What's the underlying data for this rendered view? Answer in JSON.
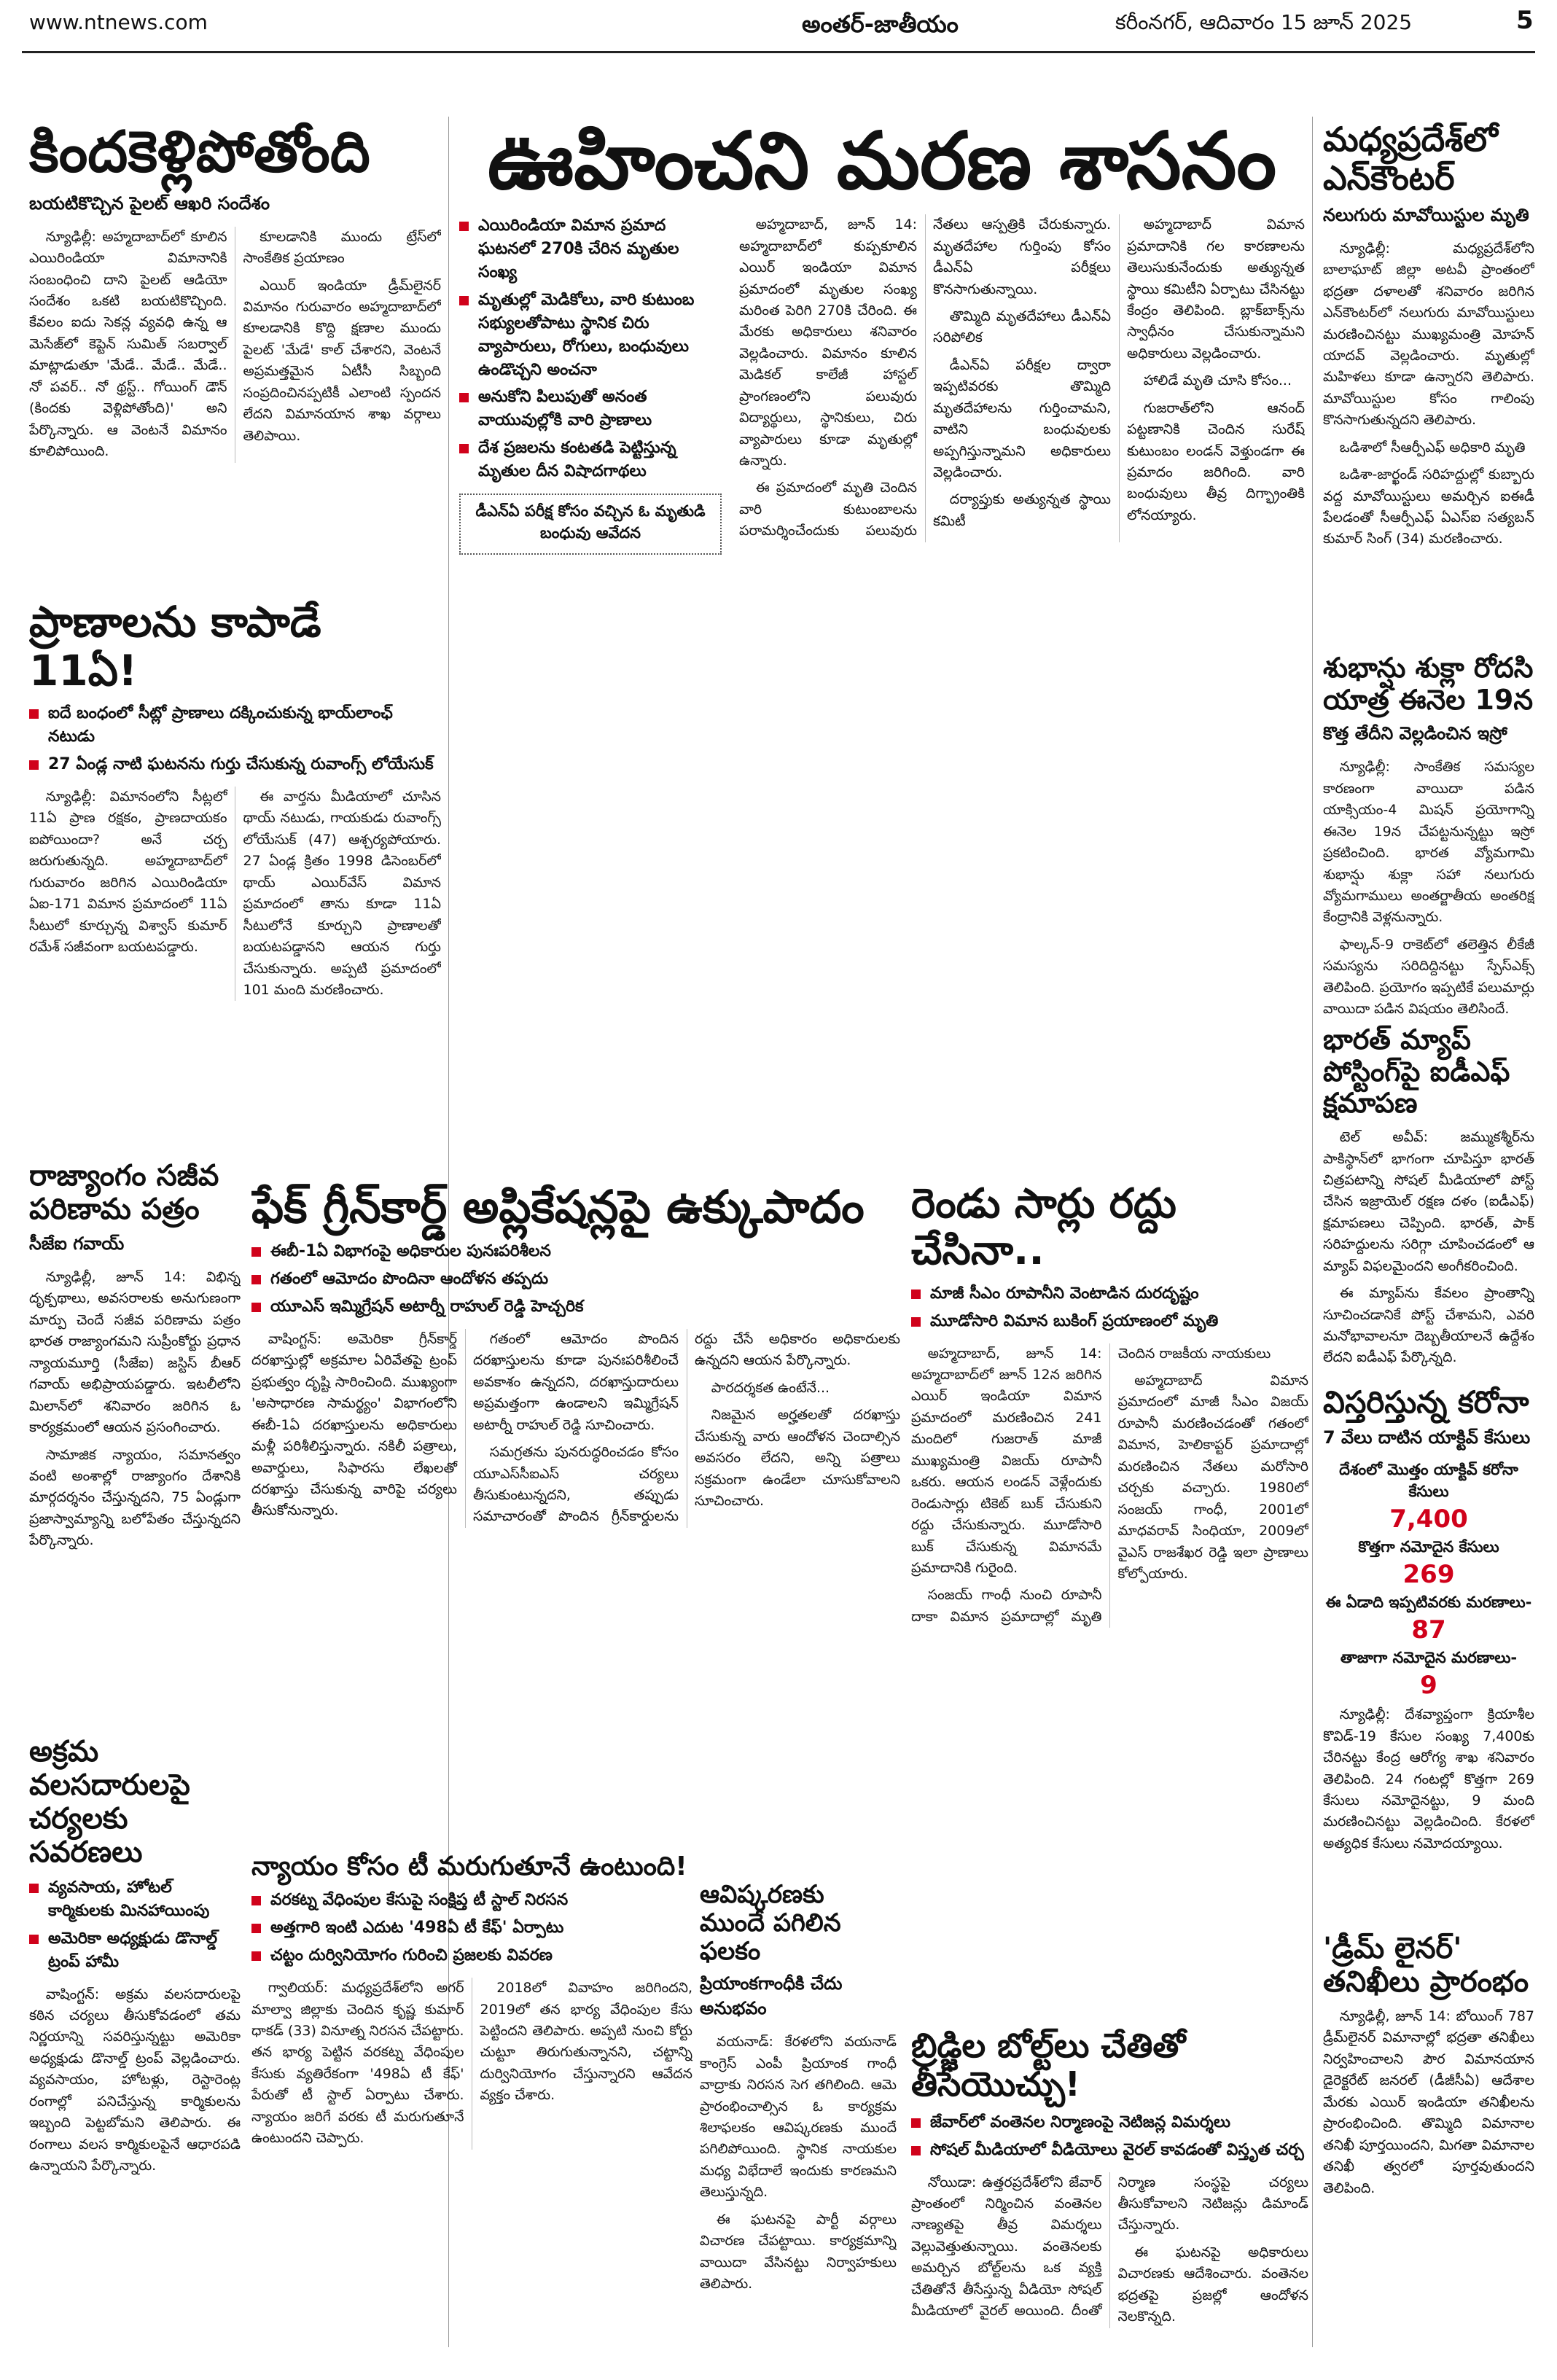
{
  "header": {
    "site": "www.ntnews.com",
    "section": "అంతర్-జాతీయం",
    "dateline": "కరీంనగర్, ఆదివారం 15 జూన్ 2025",
    "page": "5"
  },
  "articles": [
    {
      "headline": "కిందకెళ్లిపోతోంది",
      "subhead": "బయటికొచ్చిన పైలట్ ఆఖరి సందేశం",
      "body": [
        "న్యూఢిల్లీ: అహ్మదాబాద్‌లో కూలిన ఎయిరిండియా విమానానికి సంబంధించి దాని పైలట్ ఆడియో సందేశం ఒకటి బయటికొచ్చింది. కేవలం ఐదు సెకన్ల వ్యవధి ఉన్న ఆ మెసేజ్‌లో కెప్టెన్ సుమిత్ సబర్వాల్ మాట్లాడుతూ 'మేడే.. మేడే.. మేడే.. నో పవర్.. నో థ్రస్ట్.. గోయింగ్ డౌన్ (కిందకు వెళ్లిపోతోంది)' అని పేర్కొన్నారు. ఆ వెంటనే విమానం కూలిపోయింది.",
        "కూలడానికి ముందు ట్రేస్‌లో సాంకేతిక ప్రయాణం",
        "ఎయిర్ ఇండియా డ్రీమ్‌లైనర్ విమానం గురువారం అహ్మదాబాద్‌లో కూలడానికి కొద్ది క్షణాల ముందు పైలట్ 'మేడే' కాల్ చేశారని, వెంటనే అప్రమత్తమైన ఏటీసీ సిబ్బంది సంప్రదించినప్పటికీ ఎలాంటి స్పందన లేదని విమానయాన శాఖ వర్గాలు తెలిపాయి."
      ]
    },
    {
      "headline": "ఊహించని మరణ శాసనం",
      "bullets": [
        "ఎయిరిండియా విమాన ప్రమాద ఘటనలో 270కి చేరిన మృతుల సంఖ్య",
        "మృతుల్లో మెడికోలు, వారి కుటుంబ సభ్యులతోపాటు స్థానిక చిరు వ్యాపారులు, రోగులు, బంధువులు ఉండొచ్చని అంచనా",
        "అనుకోని పిలుపుతో అనంత వాయువుల్లోకి వారి ప్రాణాలు",
        "దేశ ప్రజలను కంటతడి పెట్టిస్తున్న మృతుల దీన విషాదగాథలు"
      ],
      "caption": "డీఎన్‌ఏ పరీక్ష కోసం వచ్చిన ఓ మృతుడి బంధువు ఆవేదన",
      "body": [
        "అహ్మదాబాద్, జూన్ 14: అహ్మదాబాద్‌లో కుప్పకూలిన ఎయిర్ ఇండియా విమాన ప్రమాదంలో మృతుల సంఖ్య మరింత పెరిగి 270కి చేరింది. ఈ మేరకు అధికారులు శనివారం వెల్లడించారు. విమానం కూలిన మెడికల్ కాలేజీ హాస్టల్ ప్రాంగణంలోని పలువురు విద్యార్థులు, స్థానికులు, చిరు వ్యాపారులు కూడా మృతుల్లో ఉన్నారు.",
        "ఈ ప్రమాదంలో మృతి చెందిన వారి కుటుంబాలను పరామర్శించేందుకు పలువురు నేతలు ఆస్పత్రికి చేరుకున్నారు. మృతదేహాల గుర్తింపు కోసం డీఎన్‌ఏ పరీక్షలు కొనసాగుతున్నాయి.",
        "తొమ్మిది మృతదేహాలు డీఎన్‌ఏ సరిపోలిక",
        "డీఎన్‌ఏ పరీక్షల ద్వారా ఇప్పటివరకు తొమ్మిది మృతదేహాలను గుర్తించామని, వాటిని బంధువులకు అప్పగిస్తున్నామని అధికారులు వెల్లడించారు.",
        "దర్యాప్తుకు అత్యున్నత స్థాయి కమిటీ",
        "అహ్మదాబాద్ విమాన ప్రమాదానికి గల కారణాలను తెలుసుకునేందుకు అత్యున్నత స్థాయి కమిటీని ఏర్పాటు చేసినట్టు కేంద్రం తెలిపింది. బ్లాక్‌బాక్స్‌ను స్వాధీనం చేసుకున్నామని అధికారులు వెల్లడించారు.",
        "హాలిడే మృతి చూసి కోసం...",
        "గుజరాత్‌లోని ఆనంద్ పట్టణానికి చెందిన సురేష్ కుటుంబం లండన్ వెళ్తుండగా ఈ ప్రమాదం జరిగింది. వారి బంధువులు తీవ్ర దిగ్భ్రాంతికి లోనయ్యారు."
      ]
    },
    {
      "headline": "మధ్యప్రదేశ్‌లో ఎన్‌కౌంటర్",
      "subhead": "నలుగురు మావోయిస్టుల మృతి",
      "body": [
        "న్యూఢిల్లీ: మధ్యప్రదేశ్‌లోని బాలాఘాట్ జిల్లా అటవీ ప్రాంతంలో భద్రతా దళాలతో శనివారం జరిగిన ఎన్‌కౌంటర్‌లో నలుగురు మావోయిస్టులు మరణించినట్టు ముఖ్యమంత్రి మోహన్ యాదవ్ వెల్లడించారు. మృతుల్లో మహిళలు కూడా ఉన్నారని తెలిపారు. మావోయిస్టుల కోసం గాలింపు కొనసాగుతున్నదని తెలిపారు.",
        "ఒడిశాలో సీఆర్పీఎఫ్ అధికారి మృతి",
        "ఒడిశా-జార్ఖండ్ సరిహద్దుల్లో కుబ్బారు వద్ద మావోయిస్టులు అమర్చిన ఐఈడీ పేలడంతో సీఆర్పీఎఫ్ ఏఎస్‌ఐ సత్యబన్ కుమార్ సింగ్ (34) మరణించారు."
      ]
    },
    {
      "headline": "ప్రాణాలను కాపాడే 11ఏ!",
      "bullets": [
        "ఐదే బంధంలో సీట్లో ప్రాణాలు దక్కించుకున్న భాయ్‌లాంఛ్ నటుడు",
        "27 ఏండ్ల నాటి ఘటనను గుర్తు చేసుకున్న రువాంగ్స్ లోయేసుక్"
      ],
      "body": [
        "న్యూఢిల్లీ: విమానంలోని సీట్లలో 11ఏ ప్రాణ రక్షకం, ప్రాణదాయకం ఐపోయిందా? అనే చర్చ జరుగుతున్నది. అహ్మదాబాద్‌లో గురువారం జరిగిన ఎయిరిండియా ఏఐ-171 విమాన ప్రమాదంలో 11ఏ సీటులో కూర్చున్న విశ్వాస్ కుమార్ రమేశ్ సజీవంగా బయటపడ్డారు.",
        "ఈ వార్తను మీడియాలో చూసిన థాయ్ నటుడు, గాయకుడు రువాంగ్స్ లోయేసుక్ (47) ఆశ్చర్యపోయారు. 27 ఏండ్ల క్రితం 1998 డిసెంబర్‌లో థాయ్ ఎయిర్‌వేస్ విమాన ప్రమాదంలో తాను కూడా 11ఏ సీటులోనే కూర్చుని ప్రాణాలతో బయటపడ్డానని ఆయన గుర్తు చేసుకున్నారు. అప్పటి ప్రమాదంలో 101 మంది మరణించారు."
      ]
    },
    {
      "headline": "శుభాన్షు శుక్లా రోదసి యాత్ర ఈనెల 19న",
      "subhead": "కొత్త తేదీని వెల్లడించిన ఇస్రో",
      "body": [
        "న్యూఢిల్లీ: సాంకేతిక సమస్యల కారణంగా వాయిదా పడిన యాక్సియం-4 మిషన్ ప్రయోగాన్ని ఈనెల 19న చేపట్టనున్నట్టు ఇస్రో ప్రకటించింది. భారత వ్యోమగామి శుభాన్షు శుక్లా సహా నలుగురు వ్యోమగాములు అంతర్జాతీయ అంతరిక్ష కేంద్రానికి వెళ్లనున్నారు.",
        "ఫాల్కన్-9 రాకెట్‌లో తలెత్తిన లీకేజీ సమస్యను సరిదిద్దినట్టు స్పేస్‌ఎక్స్ తెలిపింది. ప్రయోగం ఇప్పటికే పలుమార్లు వాయిదా పడిన విషయం తెలిసిందే."
      ]
    },
    {
      "headline": "భారత్ మ్యాప్ పోస్టింగ్‌పై ఐడీఎఫ్ క్షమాపణ",
      "body": [
        "టెల్ అవీవ్: జమ్ముకశ్మీర్‌ను పాకిస్థాన్‌లో భాగంగా చూపిస్తూ భారత్ చిత్రపటాన్ని సోషల్ మీడియాలో పోస్ట్ చేసిన ఇజ్రాయెల్ రక్షణ దళం (ఐడీఎఫ్) క్షమాపణలు చెప్పింది. భారత్, పాక్ సరిహద్దులను సరిగ్గా చూపించడంలో ఆ మ్యాప్ విఫలమైందని అంగీకరించింది.",
        "ఈ మ్యాప్‌ను కేవలం ప్రాంతాన్ని సూచించడానికే పోస్ట్ చేశామని, ఎవరి మనోభావాలనూ దెబ్బతీయాలనే ఉద్దేశం లేదని ఐడీఎఫ్ పేర్కొన్నది."
      ]
    },
    {
      "headline": "రాజ్యాంగం సజీవ పరిణామ పత్రం",
      "subhead": "సీజేఐ గవాయ్",
      "body": [
        "న్యూఢిల్లీ, జూన్ 14: విభిన్న దృక్పథాలు, అవసరాలకు అనుగుణంగా మార్పు చెందే సజీవ పరిణామ పత్రం భారత రాజ్యాంగమని సుప్రీంకోర్టు ప్రధాన న్యాయమూర్తి (సీజేఐ) జస్టిస్ బీఆర్ గవాయ్ అభిప్రాయపడ్డారు. ఇటలీలోని మిలాన్‌లో శనివారం జరిగిన ఓ కార్యక్రమంలో ఆయన ప్రసంగించారు.",
        "సామాజిక న్యాయం, సమానత్వం వంటి అంశాల్లో రాజ్యాంగం దేశానికి మార్గదర్శనం చేస్తున్నదని, 75 ఏండ్లుగా ప్రజాస్వామ్యాన్ని బలోపేతం చేస్తున్నదని పేర్కొన్నారు."
      ]
    },
    {
      "headline": "ఫేక్ గ్రీన్‌కార్డ్ అప్లికేషన్లపై ఉక్కుపాదం",
      "bullets": [
        "ఈబీ-1ఏ విభాగంపై అధికారుల పునఃపరిశీలన",
        "గతంలో ఆమోదం పొందినా ఆందోళన తప్పదు",
        "యూఎస్ ఇమ్మిగ్రేషన్ అటార్నీ రాహుల్ రెడ్డి హెచ్చరిక"
      ],
      "body": [
        "వాషింగ్టన్: అమెరికా గ్రీన్‌కార్డ్ దరఖాస్తుల్లో అక్రమాల ఏరివేతపై ట్రంప్ ప్రభుత్వం దృష్టి సారించింది. ముఖ్యంగా 'అసాధారణ సామర్థ్యం' విభాగంలోని ఈబీ-1ఏ దరఖాస్తులను అధికారులు మళ్లీ పరిశీలిస్తున్నారు. నకిలీ పత్రాలు, అవార్డులు, సిఫారసు లేఖలతో దరఖాస్తు చేసుకున్న వారిపై చర్యలు తీసుకోనున్నారు.",
        "గతంలో ఆమోదం పొందిన దరఖాస్తులను కూడా పునఃపరిశీలించే అవకాశం ఉన్నదని, దరఖాస్తుదారులు అప్రమత్తంగా ఉండాలని ఇమ్మిగ్రేషన్ అటార్నీ రాహుల్ రెడ్డి సూచించారు.",
        "సమగ్రతను పునరుద్ధరించడం కోసం యూఎస్‌సీఐఎస్ చర్యలు తీసుకుంటున్నదని, తప్పుడు సమాచారంతో పొందిన గ్రీన్‌కార్డులను రద్దు చేసే అధికారం అధికారులకు ఉన్నదని ఆయన పేర్కొన్నారు.",
        "పారదర్శకత ఉంటేనే...",
        "నిజమైన అర్హతలతో దరఖాస్తు చేసుకున్న వారు ఆందోళన చెందాల్సిన అవసరం లేదని, అన్ని పత్రాలు సక్రమంగా ఉండేలా చూసుకోవాలని సూచించారు."
      ]
    },
    {
      "headline": "రెండు సార్లు రద్దు చేసినా..",
      "bullets": [
        "మాజీ సీఎం రూపానీని వెంటాడిన దురదృష్టం",
        "మూడోసారి విమాన బుకింగ్ ప్రయాణంలో మృతి"
      ],
      "body": [
        "అహ్మదాబాద్, జూన్ 14: అహ్మదాబాద్‌లో జూన్ 12న జరిగిన ఎయిర్ ఇండియా విమాన ప్రమాదంలో మరణించిన 241 మందిలో గుజరాత్ మాజీ ముఖ్యమంత్రి విజయ్ రూపానీ ఒకరు. ఆయన లండన్ వెళ్లేందుకు రెండుసార్లు టికెట్ బుక్ చేసుకుని రద్దు చేసుకున్నారు. మూడోసారి బుక్ చేసుకున్న విమానమే ప్రమాదానికి గురైంది.",
        "సంజయ్ గాంధీ నుంచి రూపానీ దాకా విమాన ప్రమాదాల్లో మృతి చెందిన రాజకీయ నాయకులు",
        "అహ్మదాబాద్ విమాన ప్రమాదంలో మాజీ సీఎం విజయ్ రూపానీ మరణించడంతో గతంలో విమాన, హెలికాప్టర్ ప్రమాదాల్లో మరణించిన నేతలు మరోసారి చర్చకు వచ్చారు. 1980లో సంజయ్ గాంధీ, 2001లో మాధవరావ్ సింధియా, 2009లో వైఎస్ రాజశేఖర రెడ్డి ఇలా ప్రాణాలు కోల్పోయారు."
      ]
    },
    {
      "headline": "విస్తరిస్తున్న కరోనా",
      "subhead": "7 వేలు దాటిన యాక్టివ్ కేసులు",
      "body": [
        "న్యూఢిల్లీ: దేశవ్యాప్తంగా క్రియాశీల కొవిడ్-19 కేసుల సంఖ్య 7,400కు చేరినట్టు కేంద్ర ఆరోగ్య శాఖ శనివారం తెలిపింది. 24 గంటల్లో కొత్తగా 269 కేసులు నమోదైనట్టు, 9 మంది మరణించినట్టు వెల్లడించింది. కేరళలో అత్యధిక కేసులు నమోదయ్యాయి."
      ],
      "stats": [
        {
          "label": "దేశంలో మొత్తం యాక్టివ్ కరోనా కేసులు",
          "value": "7,400"
        },
        {
          "label": "కొత్తగా నమోదైన కేసులు",
          "value": "269"
        },
        {
          "label": "ఈ ఏడాది ఇప్పటివరకు మరణాలు-",
          "value": "87"
        },
        {
          "label": "తాజాగా నమోదైన మరణాలు-",
          "value": "9"
        }
      ]
    },
    {
      "headline": "అక్రమ వలసదారులపై చర్యలకు సవరణలు",
      "bullets": [
        "వ్యవసాయ, హోటల్ కార్మికులకు మినహాయింపు",
        "అమెరికా అధ్యక్షుడు డొనాల్డ్ ట్రంప్ హామీ"
      ],
      "body": [
        "వాషింగ్టన్: అక్రమ వలసదారులపై కఠిన చర్యలు తీసుకోవడంలో తమ నిర్ణయాన్ని సవరిస్తున్నట్టు అమెరికా అధ్యక్షుడు డొనాల్డ్ ట్రంప్ వెల్లడించారు. వ్యవసాయం, హోటళ్లు, రెస్టారెంట్ల రంగాల్లో పనిచేస్తున్న కార్మికులను ఇబ్బంది పెట్టబోమని తెలిపారు. ఈ రంగాలు వలస కార్మికులపైనే ఆధారపడి ఉన్నాయని పేర్కొన్నారు."
      ]
    },
    {
      "headline": "న్యాయం కోసం టీ మరుగుతూనే ఉంటుంది!",
      "bullets": [
        "వరకట్న వేధింపుల కేసుపై సంక్షిప్త టీ స్టాల్ నిరసన",
        "అత్తగారి ఇంటి ఎదుట '498ఏ టీ కేఫ్' ఏర్పాటు",
        "చట్టం దుర్వినియోగం గురించి ప్రజలకు వివరణ"
      ],
      "body": [
        "గ్వాలియర్: మధ్యప్రదేశ్‌లోని అగర్ మాల్వా జిల్లాకు చెందిన కృష్ణ కుమార్ ధాకడ్ (33) వినూత్న నిరసన చేపట్టారు. తన భార్య పెట్టిన వరకట్న వేధింపుల కేసుకు వ్యతిరేకంగా '498ఏ టీ కేఫ్' పేరుతో టీ స్టాల్ ఏర్పాటు చేశారు. న్యాయం జరిగే వరకు టీ మరుగుతూనే ఉంటుందని చెప్పారు.",
        "2018లో వివాహం జరిగిందని, 2019లో తన భార్య వేధింపుల కేసు పెట్టిందని తెలిపారు. అప్పటి నుంచి కోర్టు చుట్టూ తిరుగుతున్నానని, చట్టాన్ని దుర్వినియోగం చేస్తున్నారని ఆవేదన వ్యక్తం చేశారు."
      ]
    },
    {
      "headline": "ఆవిష్కరణకు ముందే పగిలిన ఫలకం",
      "subhead": "ప్రియాంకగాంధీకి చేదు అనుభవం",
      "body": [
        "వయనాడ్: కేరళలోని వయనాడ్ కాంగ్రెస్ ఎంపీ ప్రియాంక గాంధీ వాద్రాకు నిరసన సెగ తగిలింది. ఆమె ప్రారంభించాల్సిన ఓ కార్యక్రమ శిలాఫలకం ఆవిష్కరణకు ముందే పగిలిపోయింది. స్థానిక నాయకుల మధ్య విభేదాలే ఇందుకు కారణమని తెలుస్తున్నది.",
        "ఈ ఘటనపై పార్టీ వర్గాలు విచారణ చేపట్టాయి. కార్యక్రమాన్ని వాయిదా వేసినట్టు నిర్వాహకులు తెలిపారు."
      ]
    },
    {
      "headline": "'డ్రీమ్ లైనర్' తనిఖీలు ప్రారంభం",
      "body": [
        "న్యూఢిల్లీ, జూన్ 14: బోయింగ్ 787 డ్రీమ్‌లైనర్ విమానాల్లో భద్రతా తనిఖీలు నిర్వహించాలని పౌర విమానయాన డైరెక్టరేట్ జనరల్ (డీజీసీఏ) ఆదేశాల మేరకు ఎయిర్ ఇండియా తనిఖీలను ప్రారంభించింది. తొమ్మిది విమానాల తనిఖీ పూర్తయిందని, మిగతా విమానాల తనిఖీ త్వరలో పూర్తవుతుందని తెలిపింది."
      ]
    },
    {
      "headline": "బ్రిడ్జిల బోల్ట్‌లు చేతితో తీసేయొచ్చు!",
      "bullets": [
        "జేవార్‌లో వంతెనల నిర్మాణంపై నెటిజన్ల విమర్శలు",
        "సోషల్ మీడియాలో వీడియోలు వైరల్ కావడంతో విస్తృత చర్చ"
      ],
      "body": [
        "నోయిడా: ఉత్తరప్రదేశ్‌లోని జేవార్ ప్రాంతంలో నిర్మించిన వంతెనల నాణ్యతపై తీవ్ర విమర్శలు వెల్లువెత్తుతున్నాయి. వంతెనలకు అమర్చిన బోల్ట్‌లను ఒక వ్యక్తి చేతితోనే తీసేస్తున్న వీడియో సోషల్ మీడియాలో వైరల్ అయింది. దీంతో నిర్మాణ సంస్థపై చర్యలు తీసుకోవాలని నెటిజన్లు డిమాండ్ చేస్తున్నారు.",
        "ఈ ఘటనపై అధికారులు విచారణకు ఆదేశించారు. వంతెనల భద్రతపై ప్రజల్లో ఆందోళన నెలకొన్నది."
      ]
    }
  ]
}
